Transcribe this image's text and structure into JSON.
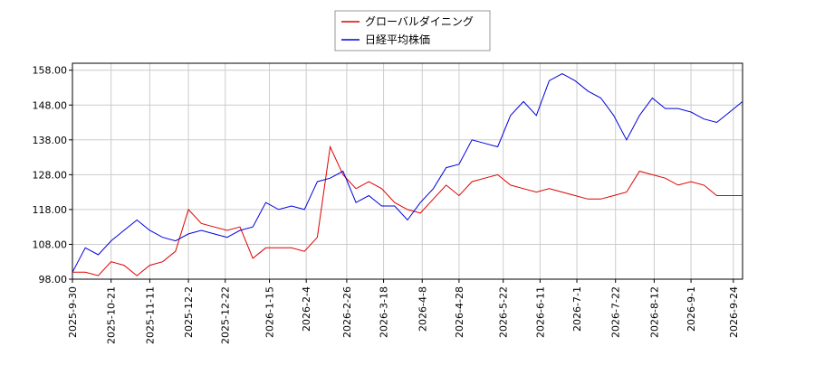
{
  "chart_data": {
    "type": "line",
    "x": [
      "2025-9-30",
      "2025-10-7",
      "2025-10-14",
      "2025-10-21",
      "2025-10-28",
      "2025-11-4",
      "2025-11-11",
      "2025-11-18",
      "2025-11-25",
      "2025-12-2",
      "2025-12-9",
      "2025-12-16",
      "2025-12-23",
      "2025-12-30",
      "2026-1-6",
      "2026-1-13",
      "2026-1-20",
      "2026-1-27",
      "2026-2-3",
      "2026-2-10",
      "2026-2-17",
      "2026-2-24",
      "2026-3-3",
      "2026-3-10",
      "2026-3-17",
      "2026-3-24",
      "2026-3-31",
      "2026-4-7",
      "2026-4-14",
      "2026-4-21",
      "2026-4-28",
      "2026-5-5",
      "2026-5-12",
      "2026-5-19",
      "2026-5-26",
      "2026-6-2",
      "2026-6-9",
      "2026-6-16",
      "2026-6-23",
      "2026-6-30",
      "2026-7-7",
      "2026-7-14",
      "2026-7-21",
      "2026-7-28",
      "2026-8-4",
      "2026-8-11",
      "2026-8-18",
      "2026-8-25",
      "2026-9-1",
      "2026-9-8",
      "2026-9-15",
      "2026-9-22",
      "2026-9-29"
    ],
    "series": [
      {
        "name": "グローバルダイニング",
        "color": "#dd0000",
        "values": [
          100,
          100,
          99,
          103,
          102,
          99,
          102,
          103,
          106,
          118,
          114,
          113,
          112,
          113,
          104,
          107,
          107,
          107,
          106,
          110,
          136,
          128,
          124,
          126,
          124,
          120,
          118,
          117,
          121,
          125,
          122,
          126,
          127,
          128,
          125,
          124,
          123,
          124,
          123,
          122,
          121,
          121,
          122,
          123,
          129,
          128,
          127,
          125,
          126,
          125,
          122,
          122,
          122
        ]
      },
      {
        "name": "日経平均株価",
        "color": "#0000dd",
        "values": [
          100,
          107,
          105,
          109,
          112,
          115,
          112,
          110,
          109,
          111,
          112,
          111,
          110,
          112,
          113,
          120,
          118,
          119,
          118,
          126,
          127,
          129,
          120,
          122,
          119,
          119,
          115,
          120,
          124,
          130,
          131,
          138,
          137,
          136,
          145,
          149,
          145,
          155,
          157,
          155,
          152,
          150,
          145,
          138,
          145,
          150,
          147,
          147,
          146,
          144,
          143,
          146,
          149
        ]
      }
    ],
    "xlim": [
      "2025-9-30",
      "2026-9-29"
    ],
    "xticks": [
      "2025-9-30",
      "2025-10-21",
      "2025-11-11",
      "2025-12-2",
      "2025-12-22",
      "2026-1-15",
      "2026-2-4",
      "2026-2-26",
      "2026-3-18",
      "2026-4-8",
      "2026-4-28",
      "2026-5-22",
      "2026-6-11",
      "2026-7-1",
      "2026-7-22",
      "2026-8-12",
      "2026-9-1",
      "2026-9-24"
    ],
    "ylim": [
      98,
      160
    ],
    "yticks": [
      {
        "value": 98,
        "label": "98.00"
      },
      {
        "value": 108,
        "label": "108.00"
      },
      {
        "value": 118,
        "label": "118.00"
      },
      {
        "value": 128,
        "label": "128.00"
      },
      {
        "value": 138,
        "label": "138.00"
      },
      {
        "value": 148,
        "label": "148.00"
      },
      {
        "value": 158,
        "label": "158.00"
      }
    ],
    "grid": true
  }
}
